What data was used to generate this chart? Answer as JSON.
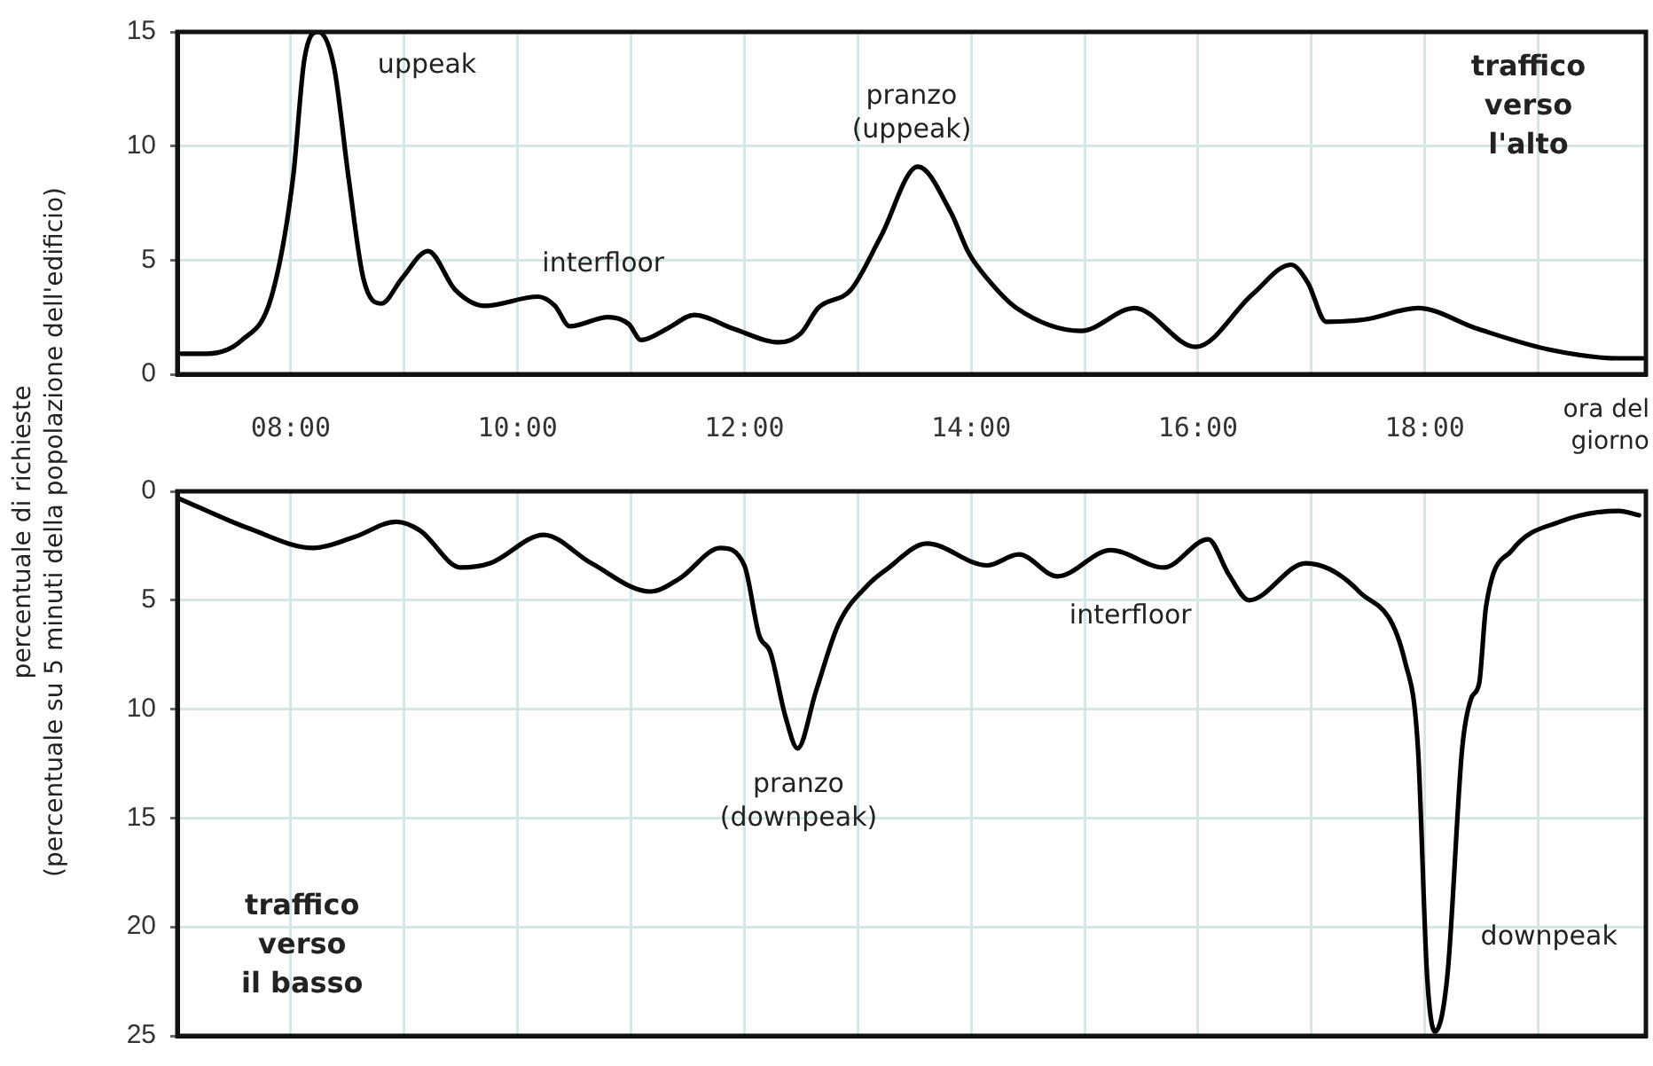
{
  "chart_data": [
    {
      "type": "line",
      "xlabel": "ora del giorno",
      "ylabel": "percentuale di richieste\n(percentuale su 5 minuti della popolazione dell'edificio)",
      "x": [
        7.03,
        7.26,
        7.57,
        7.83,
        8.02,
        8.12,
        8.24,
        8.38,
        8.51,
        8.64,
        8.8,
        8.98,
        9.21,
        9.45,
        9.71,
        10.18,
        10.33,
        10.46,
        10.8,
        10.98,
        11.09,
        11.32,
        11.56,
        11.9,
        12.31,
        12.5,
        12.65,
        12.94,
        13.2,
        13.53,
        13.82,
        13.98,
        14.14,
        14.4,
        14.97,
        15.44,
        15.98,
        16.48,
        16.82,
        16.97,
        17.13,
        17.47,
        17.94,
        18.46,
        19.08,
        19.71,
        19.92
      ],
      "series": [
        {
          "color": "#000000",
          "values": [
            0.9,
            0.9,
            1.5,
            3.4,
            8.6,
            13.8,
            15,
            13.5,
            8.6,
            4.2,
            3.1,
            4.2,
            5.4,
            3.7,
            3.0,
            3.4,
            3.0,
            2.1,
            2.5,
            2.2,
            1.5,
            2.0,
            2.6,
            2.0,
            1.4,
            1.8,
            2.9,
            3.7,
            6.0,
            9.1,
            7.1,
            5.3,
            4.2,
            2.9,
            1.9,
            2.9,
            1.2,
            3.5,
            4.8,
            4.0,
            2.3,
            2.4,
            2.9,
            2.0,
            1.1,
            0.7,
            0.7
          ]
        }
      ],
      "xlim": [
        7,
        19.95
      ],
      "xticks": [
        {
          "value": 8,
          "label": "08:00"
        },
        {
          "value": 9,
          "label": null
        },
        {
          "value": 10,
          "label": "10:00"
        },
        {
          "value": 11,
          "label": null
        },
        {
          "value": 12,
          "label": "12:00"
        },
        {
          "value": 13,
          "label": null
        },
        {
          "value": 14,
          "label": "14:00"
        },
        {
          "value": 15,
          "label": null
        },
        {
          "value": 16,
          "label": "16:00"
        },
        {
          "value": 17,
          "label": null
        },
        {
          "value": 18,
          "label": "18:00"
        },
        {
          "value": 19,
          "label": null
        }
      ],
      "ylim": [
        0,
        15
      ],
      "yticks": [
        0,
        5,
        10,
        15
      ],
      "grid": true,
      "marker": "none",
      "line_style": "solid",
      "annotations": [
        "uppeak",
        "pranzo\n(uppeak)",
        "interfloor",
        "traffico\nverso\nl'alto"
      ]
    },
    {
      "type": "line",
      "x": [
        7.0,
        7.63,
        8.2,
        8.56,
        8.93,
        9.14,
        9.5,
        9.76,
        10.23,
        10.65,
        11.17,
        11.43,
        11.79,
        12.0,
        12.13,
        12.23,
        12.36,
        12.47,
        12.63,
        12.83,
        13.09,
        13.25,
        13.61,
        14.14,
        14.42,
        14.76,
        15.23,
        15.7,
        16.09,
        16.27,
        16.45,
        16.95,
        17.42,
        17.83,
        17.94,
        18.02,
        18.09,
        18.2,
        18.33,
        18.41,
        18.48,
        18.54,
        18.77,
        19.19,
        19.71,
        19.89
      ],
      "series": [
        {
          "color": "#000000",
          "values": [
            0.3,
            1.7,
            2.6,
            2.1,
            1.4,
            1.8,
            3.5,
            3.3,
            2.0,
            3.3,
            4.6,
            4.0,
            2.6,
            3.4,
            6.6,
            7.4,
            10.3,
            11.8,
            9.2,
            6.1,
            4.3,
            3.6,
            2.4,
            3.4,
            2.9,
            3.9,
            2.7,
            3.5,
            2.2,
            3.8,
            5.0,
            3.3,
            4.6,
            7.9,
            11.8,
            22.2,
            24.8,
            22.2,
            11.8,
            9.5,
            8.8,
            5.3,
            2.7,
            1.4,
            0.9,
            1.1
          ]
        }
      ],
      "xlim": [
        7,
        19.95
      ],
      "xticks": [
        {
          "value": 8,
          "label": null
        },
        {
          "value": 9,
          "label": null
        },
        {
          "value": 10,
          "label": null
        },
        {
          "value": 11,
          "label": null
        },
        {
          "value": 12,
          "label": null
        },
        {
          "value": 13,
          "label": null
        },
        {
          "value": 14,
          "label": null
        },
        {
          "value": 15,
          "label": null
        },
        {
          "value": 16,
          "label": null
        },
        {
          "value": 17,
          "label": null
        },
        {
          "value": 18,
          "label": null
        },
        {
          "value": 19,
          "label": null
        }
      ],
      "ylim": [
        25,
        0
      ],
      "yticks": [
        0,
        5,
        10,
        15,
        20,
        25
      ],
      "grid": true,
      "marker": "none",
      "line_style": "solid",
      "tick_labels": "y",
      "annotations": [
        "pranzo\n(downpeak)",
        "interfloor",
        "downpeak",
        "traffico\nverso\nil basso"
      ]
    }
  ]
}
